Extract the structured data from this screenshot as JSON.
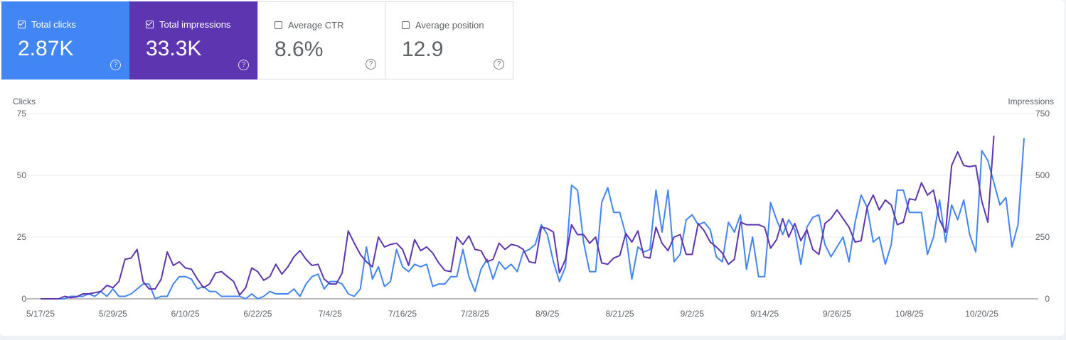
{
  "metrics": [
    {
      "label": "Total clicks",
      "value": "2.87K",
      "checked": true
    },
    {
      "label": "Total impressions",
      "value": "33.3K",
      "checked": true
    },
    {
      "label": "Average CTR",
      "value": "8.6%",
      "checked": false
    },
    {
      "label": "Average position",
      "value": "12.9",
      "checked": false
    }
  ],
  "help_glyph": "?",
  "chart_data": {
    "type": "line",
    "left_axis": {
      "title": "Clicks",
      "ticks": [
        "0",
        "25",
        "50",
        "75"
      ],
      "ylim": [
        0,
        75
      ]
    },
    "right_axis": {
      "title": "Impressions",
      "ticks": [
        "0",
        "250",
        "500",
        "750"
      ],
      "ylim": [
        0,
        750
      ]
    },
    "x_ticks": [
      "5/17/25",
      "5/29/25",
      "6/10/25",
      "6/22/25",
      "7/4/25",
      "7/16/25",
      "7/28/25",
      "8/9/25",
      "8/21/25",
      "9/2/25",
      "9/14/25",
      "9/26/25",
      "10/8/25",
      "10/20/25"
    ],
    "x_start": "5/17/25",
    "grid": true,
    "series": [
      {
        "name": "Total clicks",
        "axis": "left",
        "color": "#4285f4",
        "values": [
          0,
          0,
          0,
          0,
          0,
          1,
          1,
          1,
          2,
          1,
          3,
          1,
          4,
          1,
          1,
          2,
          4,
          6,
          6,
          0,
          1,
          1,
          6,
          9,
          9,
          8,
          4,
          5,
          3,
          3,
          1,
          1,
          1,
          1,
          0,
          2,
          0,
          1,
          3,
          2,
          2,
          2,
          4,
          1,
          6,
          9,
          10,
          4,
          7,
          7,
          6,
          2,
          1,
          4,
          21,
          8,
          13,
          5,
          7,
          20,
          13,
          11,
          14,
          13,
          14,
          5,
          6,
          6,
          9,
          9,
          20,
          9,
          3,
          12,
          16,
          8,
          15,
          12,
          14,
          11,
          19,
          20,
          22,
          30,
          26,
          15,
          7,
          13,
          46,
          44,
          23,
          11,
          11,
          39,
          45,
          35,
          35,
          26,
          8,
          21,
          19,
          20,
          44,
          27,
          44,
          15,
          18,
          32,
          34,
          30,
          31,
          28,
          17,
          15,
          31,
          27,
          34,
          12,
          25,
          9,
          9,
          39,
          32,
          26,
          32,
          28,
          14,
          29,
          33,
          34,
          22,
          17,
          21,
          25,
          15,
          31,
          42,
          37,
          23,
          25,
          14,
          22,
          44,
          44,
          35,
          35,
          35,
          18,
          25,
          40,
          23,
          38,
          32,
          40,
          26,
          19,
          60,
          56,
          47,
          38,
          41,
          21,
          30,
          65
        ],
        "note_unit": "clicks"
      },
      {
        "name": "Total impressions",
        "axis": "left_scaled",
        "color": "#5e35b1",
        "values": [
          0,
          0,
          0,
          0,
          10,
          5,
          8,
          20,
          20,
          25,
          30,
          55,
          45,
          70,
          160,
          165,
          200,
          70,
          40,
          40,
          80,
          190,
          135,
          150,
          125,
          120,
          80,
          45,
          60,
          105,
          110,
          90,
          70,
          15,
          45,
          125,
          110,
          75,
          90,
          140,
          100,
          130,
          170,
          195,
          160,
          135,
          140,
          80,
          60,
          60,
          105,
          275,
          225,
          180,
          150,
          130,
          250,
          210,
          220,
          225,
          200,
          135,
          240,
          195,
          210,
          185,
          145,
          115,
          110,
          250,
          220,
          255,
          200,
          195,
          150,
          160,
          225,
          200,
          220,
          215,
          200,
          150,
          145,
          290,
          285,
          270,
          105,
          160,
          300,
          260,
          260,
          225,
          250,
          145,
          140,
          165,
          175,
          265,
          230,
          275,
          170,
          165,
          290,
          225,
          195,
          250,
          260,
          180,
          180,
          305,
          275,
          230,
          210,
          185,
          140,
          160,
          310,
          300,
          300,
          300,
          290,
          205,
          240,
          325,
          250,
          305,
          235,
          280,
          200,
          180,
          305,
          325,
          360,
          325,
          290,
          230,
          235,
          370,
          420,
          360,
          400,
          380,
          300,
          310,
          405,
          400,
          470,
          420,
          440,
          320,
          270,
          540,
          595,
          540,
          535,
          540,
          395,
          310,
          660
        ]
      }
    ]
  }
}
